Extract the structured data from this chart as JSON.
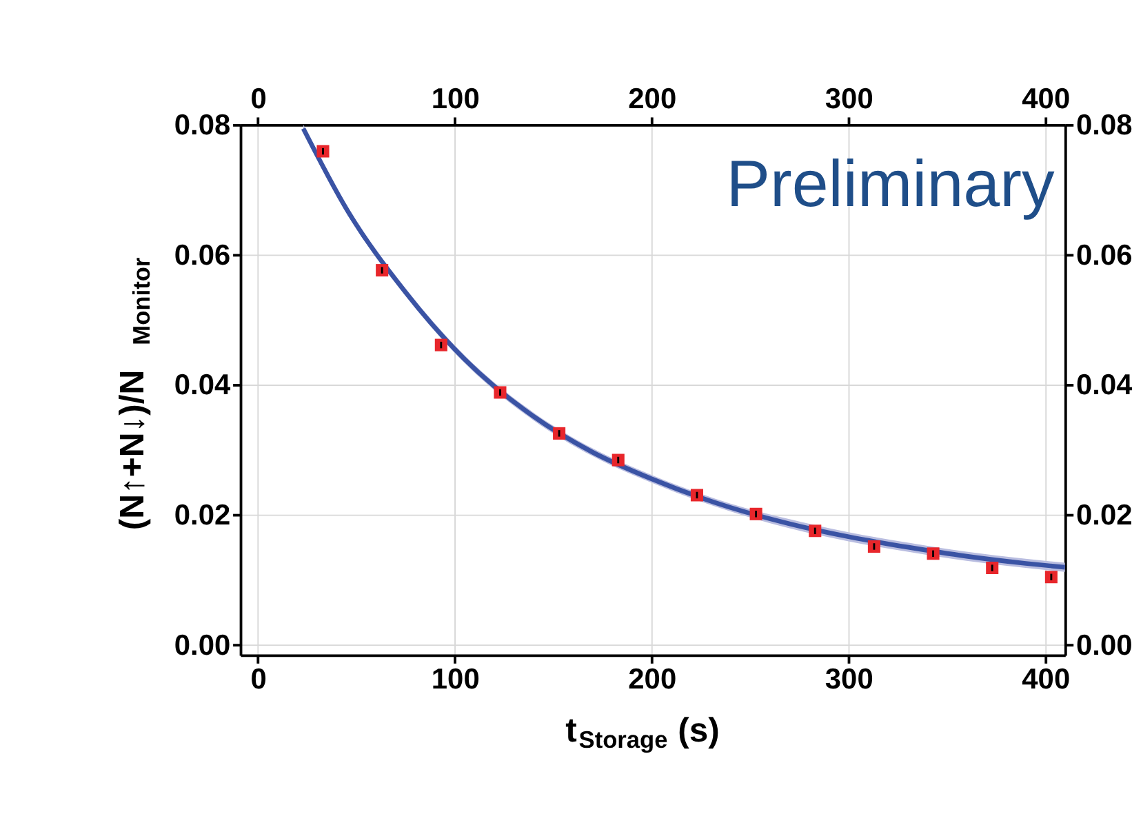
{
  "chart_data": {
    "type": "scatter",
    "xlabel": "t$_{Storage}$ (s)",
    "ylabel": "(N↑+N↓)/N$_{Monitor}$",
    "annotations": [
      "Preliminary"
    ],
    "series": [
      {
        "color": "#e8262b",
        "marker": "square",
        "x": [
          33,
          63,
          93,
          123,
          153,
          183,
          223,
          253,
          283,
          313,
          343,
          373,
          403
        ],
        "values": [
          0.0759,
          0.0576,
          0.0461,
          0.0388,
          0.0325,
          0.0284,
          0.023,
          0.0201,
          0.0175,
          0.0151,
          0.014,
          0.0118,
          0.0104
        ],
        "errors": [
          0.0005,
          0.0005,
          0.0005,
          0.0005,
          0.0005,
          0.0005,
          0.0005,
          0.0005,
          0.0005,
          0.0005,
          0.0005,
          0.0005,
          0.0005
        ]
      },
      {
        "type": "line",
        "color": "#3a53a4",
        "line_style": "solid",
        "x": [
          23,
          45,
          75,
          105,
          140,
          170,
          200,
          240,
          270,
          300,
          330,
          360,
          390,
          410
        ],
        "values": [
          0.0794,
          0.067,
          0.0542,
          0.0439,
          0.0351,
          0.0296,
          0.0255,
          0.0211,
          0.0186,
          0.0166,
          0.015,
          0.0136,
          0.0125,
          0.0119
        ],
        "lower": [
          0.0788,
          0.0664,
          0.0536,
          0.0433,
          0.0345,
          0.029,
          0.0249,
          0.0205,
          0.0179,
          0.0159,
          0.0143,
          0.0129,
          0.0118,
          0.0112
        ],
        "upper": [
          0.08,
          0.0676,
          0.0548,
          0.0445,
          0.0357,
          0.0302,
          0.0261,
          0.0217,
          0.0193,
          0.0173,
          0.0157,
          0.0143,
          0.0132,
          0.0126
        ]
      }
    ],
    "xlim": [
      -9,
      410
    ],
    "xticks": [
      0,
      100,
      200,
      300,
      400
    ],
    "x2lim": [
      -9,
      410
    ],
    "x2ticks": [
      0,
      100,
      200,
      300,
      400
    ],
    "ylim": [
      -0.0016,
      0.08
    ],
    "yticks": [
      {
        "value": 0,
        "label": "0.00"
      },
      {
        "value": 0.02,
        "label": "0.02"
      },
      {
        "value": 0.04,
        "label": "0.04"
      },
      {
        "value": 0.06,
        "label": "0.06"
      },
      {
        "value": 0.08,
        "label": "0.08"
      }
    ],
    "y2lim": [
      -0.0016,
      0.08
    ],
    "y2ticks": [
      {
        "value": 0,
        "label": "0.00"
      },
      {
        "value": 0.02,
        "label": "0.02"
      },
      {
        "value": 0.04,
        "label": "0.04"
      },
      {
        "value": 0.06,
        "label": "0.06"
      },
      {
        "value": 0.08,
        "label": "0.08"
      }
    ],
    "grid": true
  }
}
